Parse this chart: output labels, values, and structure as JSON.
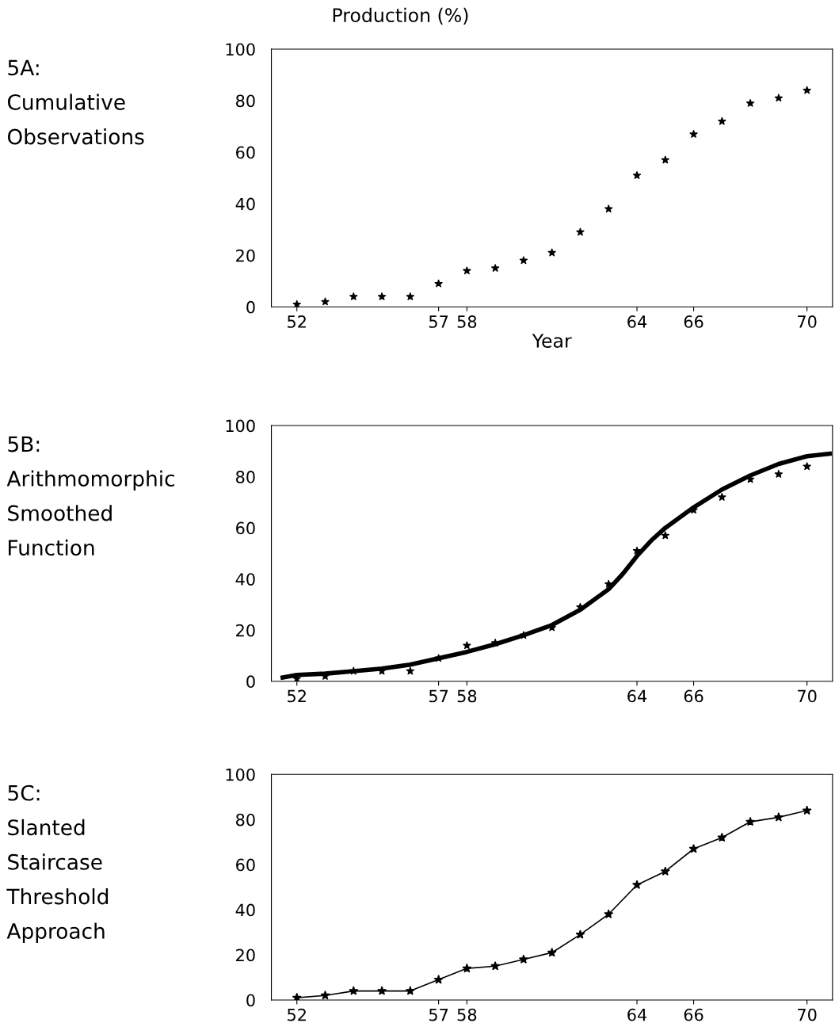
{
  "chart_data": [
    {
      "type": "scatter",
      "title": "5A:\nCumulative\nObservations",
      "ylabel": "Production (%)",
      "xlabel": "Year",
      "xlim": [
        51.1,
        70.9
      ],
      "ylim": [
        0,
        100
      ],
      "xticks": [
        52,
        57,
        58,
        64,
        66,
        70
      ],
      "yticks": [
        0,
        20,
        40,
        60,
        80,
        100
      ],
      "marker": "star",
      "grid": false,
      "legend": false,
      "series": [
        {
          "color": "#000000",
          "x": [
            52,
            53,
            54,
            55,
            56,
            57,
            58,
            59,
            60,
            61,
            62,
            63,
            64,
            65,
            66,
            67,
            68,
            69,
            70
          ],
          "values": [
            1,
            2,
            4,
            4,
            4,
            9,
            14,
            15,
            18,
            21,
            29,
            38,
            51,
            57,
            67,
            72,
            79,
            81,
            84
          ]
        }
      ]
    },
    {
      "type": "scatter",
      "title": "5B:\nArithmomorphic\nSmoothed\nFunction",
      "xlim": [
        51.1,
        70.9
      ],
      "ylim": [
        0,
        100
      ],
      "xticks": [
        52,
        57,
        58,
        64,
        66,
        70
      ],
      "yticks": [
        0,
        20,
        40,
        60,
        80,
        100
      ],
      "marker": "star",
      "grid": false,
      "legend": false,
      "series": [
        {
          "color": "#000000",
          "x": [
            52,
            53,
            54,
            55,
            56,
            57,
            58,
            59,
            60,
            61,
            62,
            63,
            64,
            65,
            66,
            67,
            68,
            69,
            70
          ],
          "values": [
            1,
            2,
            4,
            4,
            4,
            9,
            14,
            15,
            18,
            21,
            29,
            38,
            51,
            57,
            67,
            72,
            79,
            81,
            84
          ]
        },
        {
          "type": "line",
          "color": "#000000",
          "marker": "none",
          "line_style": "solid",
          "x": [
            51.5,
            52,
            53,
            54,
            55,
            56,
            57,
            58,
            59,
            60,
            61,
            62,
            63,
            63.5,
            64,
            64.5,
            65,
            66,
            67,
            68,
            69,
            70,
            70.8
          ],
          "values": [
            1.5,
            2.5,
            3,
            4,
            5,
            6.5,
            9,
            11.5,
            14.5,
            18,
            22,
            28,
            36,
            42,
            49,
            55,
            60,
            68,
            75,
            80.5,
            85,
            88,
            89
          ]
        }
      ]
    },
    {
      "type": "line",
      "title": "5C:\nSlanted\nStaircase\nThreshold\nApproach",
      "xlim": [
        51.1,
        70.9
      ],
      "ylim": [
        0,
        100
      ],
      "xticks": [
        52,
        57,
        58,
        64,
        66,
        70
      ],
      "yticks": [
        0,
        20,
        40,
        60,
        80,
        100
      ],
      "marker": "star",
      "line_style": "solid",
      "grid": false,
      "legend": false,
      "series": [
        {
          "color": "#000000",
          "x": [
            52,
            53,
            54,
            55,
            56,
            57,
            58,
            59,
            60,
            61,
            62,
            63,
            64,
            65,
            66,
            67,
            68,
            69,
            70
          ],
          "values": [
            1,
            2,
            4,
            4,
            4,
            9,
            14,
            15,
            18,
            21,
            29,
            38,
            51,
            57,
            67,
            72,
            79,
            81,
            84
          ]
        }
      ]
    }
  ]
}
